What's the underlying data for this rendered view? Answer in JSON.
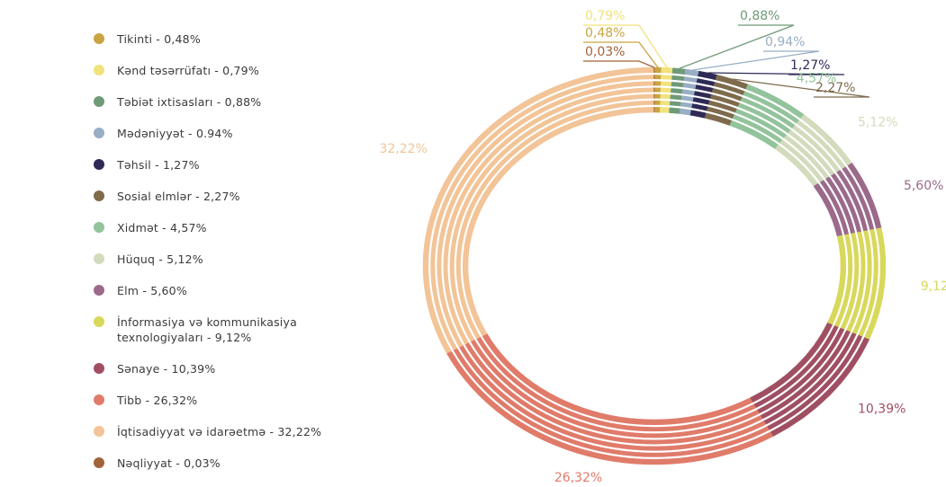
{
  "chart_data": {
    "type": "pie",
    "donut": true,
    "categories": [
      "Tikinti - 0,48%",
      "Kənd təsərrüfatı - 0,79%",
      "Təbiət ixtisasları - 0,88%",
      "Mədəniyyət - 0.94%",
      "Təhsil - 1,27%",
      "Sosial elmlər - 2,27%",
      "Xidmət - 4,57%",
      "Hüquq - 5,12%",
      "Elm - 5,60%",
      "İnformasiya və kommunikasiya texnologiyaları - 9,12%",
      "Sənaye - 10,39%",
      "Tibb - 26,32%",
      "İqtisadiyyat və idarəetmə - 32,22%",
      "Nəqliyyat - 0,03%"
    ],
    "values": [
      0.48,
      0.79,
      0.88,
      0.94,
      1.27,
      2.27,
      4.57,
      5.12,
      5.6,
      9.12,
      10.39,
      26.32,
      32.22,
      0.03
    ],
    "value_labels": [
      "0,48%",
      "0,79%",
      "0,88%",
      "0,94%",
      "1,27%",
      "2,27%",
      "4,57%",
      "5,12%",
      "5,60%",
      "9,12%",
      "10,39%",
      "26,32%",
      "32,22%",
      "0,03%"
    ],
    "colors": [
      "#c9a441",
      "#f1e27c",
      "#6f9a78",
      "#98aec4",
      "#2e2a55",
      "#7d6b4c",
      "#93c39b",
      "#d3dbbd",
      "#9b6a8a",
      "#d8d85c",
      "#a04f62",
      "#e07b6a",
      "#f2c497",
      "#a0643a"
    ]
  }
}
